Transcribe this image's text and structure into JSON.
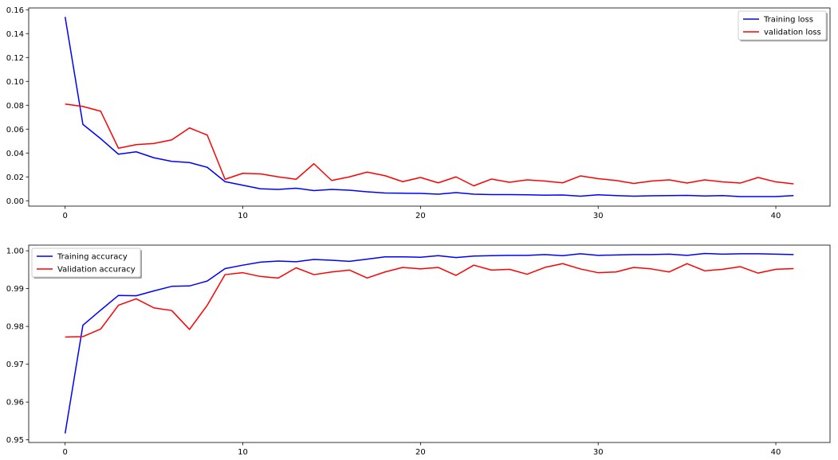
{
  "colors": {
    "training": "#0000ff",
    "validation": "#ff0000",
    "frame": "#000000"
  },
  "chart_data": [
    {
      "type": "line",
      "title": "",
      "xlabel": "",
      "ylabel": "",
      "xlim": [
        -2.05,
        43.05
      ],
      "ylim": [
        -0.0045,
        0.1615
      ],
      "xticks": [
        0,
        10,
        20,
        30,
        40
      ],
      "xtick_labels": [
        "0",
        "10",
        "20",
        "30",
        "40"
      ],
      "yticks": [
        0.0,
        0.02,
        0.04,
        0.06,
        0.08,
        0.1,
        0.12,
        0.14,
        0.16
      ],
      "ytick_labels": [
        "0.00",
        "0.02",
        "0.04",
        "0.06",
        "0.08",
        "0.10",
        "0.12",
        "0.14",
        "0.16"
      ],
      "grid": false,
      "legend_position": "top-right",
      "x": [
        0,
        1,
        2,
        3,
        4,
        5,
        6,
        7,
        8,
        9,
        10,
        11,
        12,
        13,
        14,
        15,
        16,
        17,
        18,
        19,
        20,
        21,
        22,
        23,
        24,
        25,
        26,
        27,
        28,
        29,
        30,
        31,
        32,
        33,
        34,
        35,
        36,
        37,
        38,
        39,
        40,
        41
      ],
      "series": [
        {
          "name": "Training loss",
          "color": "#0000ff",
          "values": [
            0.154,
            0.064,
            0.052,
            0.039,
            0.041,
            0.036,
            0.033,
            0.032,
            0.028,
            0.016,
            0.013,
            0.01,
            0.0095,
            0.0105,
            0.0085,
            0.0095,
            0.0088,
            0.0075,
            0.0065,
            0.0063,
            0.0062,
            0.0055,
            0.0068,
            0.0055,
            0.0052,
            0.0052,
            0.005,
            0.0047,
            0.0048,
            0.0038,
            0.005,
            0.0043,
            0.0038,
            0.0042,
            0.0043,
            0.0045,
            0.004,
            0.0043,
            0.0035,
            0.0035,
            0.0035,
            0.0043
          ]
        },
        {
          "name": "validation loss",
          "color": "#ff0000",
          "values": [
            0.081,
            0.079,
            0.075,
            0.044,
            0.047,
            0.048,
            0.051,
            0.061,
            0.055,
            0.018,
            0.023,
            0.0225,
            0.02,
            0.018,
            0.031,
            0.017,
            0.02,
            0.024,
            0.021,
            0.016,
            0.0195,
            0.015,
            0.02,
            0.0125,
            0.0182,
            0.0155,
            0.0175,
            0.0165,
            0.015,
            0.0208,
            0.0185,
            0.017,
            0.0145,
            0.0165,
            0.0175,
            0.0148,
            0.0175,
            0.0158,
            0.0148,
            0.0195,
            0.0158,
            0.0142
          ]
        }
      ]
    },
    {
      "type": "line",
      "title": "",
      "xlabel": "",
      "ylabel": "",
      "xlim": [
        -2.05,
        43.05
      ],
      "ylim": [
        0.9493,
        1.0015
      ],
      "xticks": [
        0,
        10,
        20,
        30,
        40
      ],
      "xtick_labels": [
        "0",
        "10",
        "20",
        "30",
        "40"
      ],
      "yticks": [
        0.95,
        0.96,
        0.97,
        0.98,
        0.99,
        1.0
      ],
      "ytick_labels": [
        "0.95",
        "0.96",
        "0.97",
        "0.98",
        "0.99",
        "1.00"
      ],
      "grid": false,
      "legend_position": "top-left",
      "x": [
        0,
        1,
        2,
        3,
        4,
        5,
        6,
        7,
        8,
        9,
        10,
        11,
        12,
        13,
        14,
        15,
        16,
        17,
        18,
        19,
        20,
        21,
        22,
        23,
        24,
        25,
        26,
        27,
        28,
        29,
        30,
        31,
        32,
        33,
        34,
        35,
        36,
        37,
        38,
        39,
        40,
        41
      ],
      "series": [
        {
          "name": "Training accuracy",
          "color": "#0000ff",
          "values": [
            0.9517,
            0.9803,
            0.9843,
            0.9882,
            0.9881,
            0.9894,
            0.9906,
            0.9907,
            0.992,
            0.9953,
            0.9962,
            0.997,
            0.9973,
            0.9971,
            0.9977,
            0.9975,
            0.9972,
            0.9978,
            0.9984,
            0.9984,
            0.9983,
            0.9987,
            0.9982,
            0.9986,
            0.9987,
            0.9988,
            0.9988,
            0.999,
            0.9987,
            0.9992,
            0.9988,
            0.9989,
            0.999,
            0.999,
            0.9991,
            0.9988,
            0.9993,
            0.9991,
            0.9992,
            0.9992,
            0.9991,
            0.999
          ]
        },
        {
          "name": "Validation accuracy",
          "color": "#ff0000",
          "values": [
            0.9772,
            0.9773,
            0.9793,
            0.9856,
            0.9873,
            0.9849,
            0.9842,
            0.9792,
            0.9856,
            0.9937,
            0.9942,
            0.9932,
            0.9928,
            0.9955,
            0.9937,
            0.9944,
            0.9949,
            0.9928,
            0.9944,
            0.9956,
            0.9952,
            0.9956,
            0.9935,
            0.9962,
            0.9949,
            0.9951,
            0.9938,
            0.9956,
            0.9966,
            0.9952,
            0.9942,
            0.9944,
            0.9956,
            0.9952,
            0.9944,
            0.9966,
            0.9947,
            0.9951,
            0.9958,
            0.9941,
            0.9951,
            0.9953
          ]
        }
      ]
    }
  ]
}
